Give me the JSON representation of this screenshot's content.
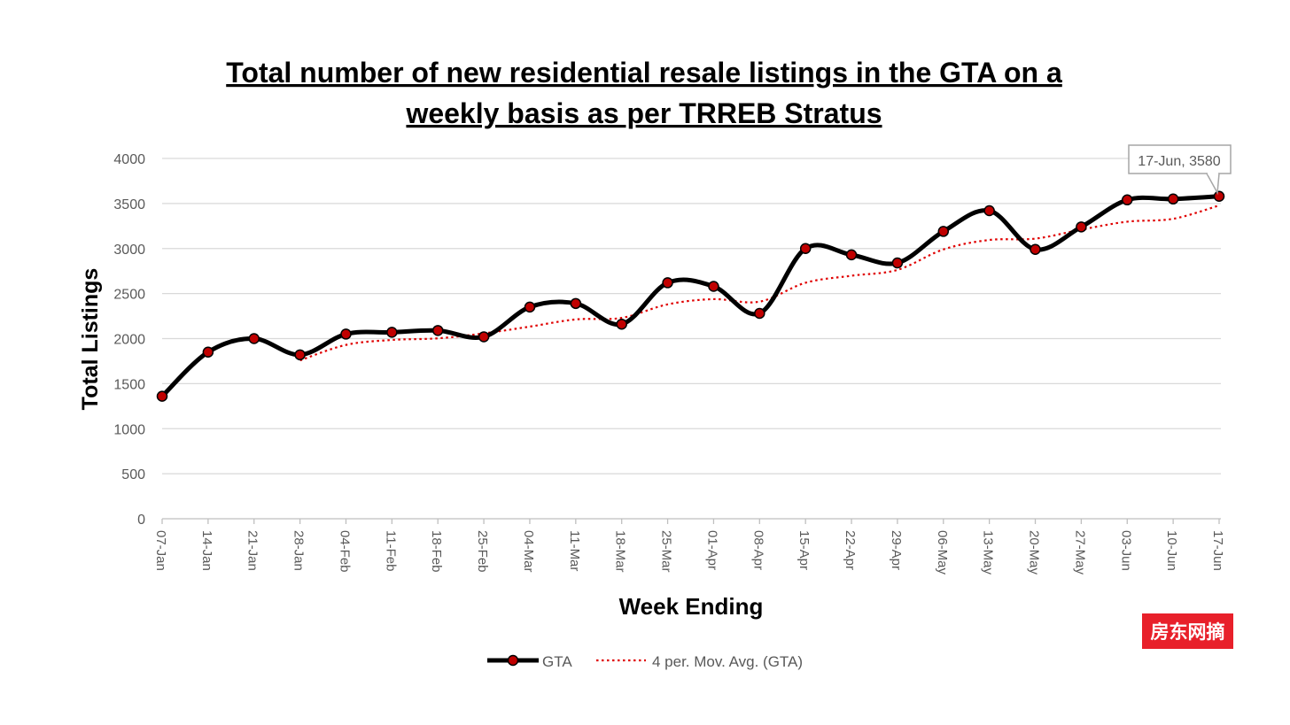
{
  "chart_data": {
    "type": "line",
    "title_lines": [
      "Total number of new residential resale listings in the GTA on a",
      "weekly basis as per TRREB Stratus"
    ],
    "xlabel": "Week Ending",
    "ylabel": "Total Listings",
    "ylim": [
      0,
      4000
    ],
    "yticks": [
      "0",
      "500",
      "1000",
      "1500",
      "2000",
      "2500",
      "3000",
      "3500",
      "4000"
    ],
    "categories": [
      "07-Jan",
      "14-Jan",
      "21-Jan",
      "28-Jan",
      "04-Feb",
      "11-Feb",
      "18-Feb",
      "25-Feb",
      "04-Mar",
      "11-Mar",
      "18-Mar",
      "25-Mar",
      "01-Apr",
      "08-Apr",
      "15-Apr",
      "22-Apr",
      "29-Apr",
      "06-May",
      "13-May",
      "20-May",
      "27-May",
      "03-Jun",
      "10-Jun",
      "17-Jun"
    ],
    "series": [
      {
        "name": "GTA",
        "color": "#000000",
        "marker_color": "#c00000",
        "values": [
          1360,
          1850,
          2000,
          1820,
          2050,
          2070,
          2090,
          2020,
          2350,
          2390,
          2160,
          2620,
          2580,
          2280,
          3000,
          2930,
          2840,
          3190,
          3420,
          2990,
          3240,
          3540,
          3550,
          3580
        ]
      },
      {
        "name": "4 per. Mov. Avg. (GTA)",
        "color": "#e00000",
        "values": [
          null,
          null,
          null,
          1758,
          1930,
          1985,
          2003,
          2058,
          2133,
          2213,
          2230,
          2380,
          2438,
          2410,
          2620,
          2698,
          2763,
          2990,
          3095,
          3110,
          3210,
          3298,
          3330,
          3478
        ]
      }
    ],
    "annotation": "17-Jun, 3580",
    "legend_position": "bottom",
    "grid": true
  },
  "watermark": "房东网摘"
}
